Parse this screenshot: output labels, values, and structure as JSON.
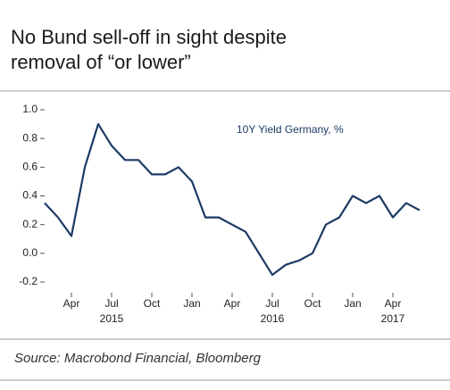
{
  "chart_data": {
    "type": "line",
    "title": "No Bund sell-off in sight despite removal of “or lower”",
    "annotation": "10Y Yield Germany, %",
    "source": "Source: Macrobond Financial, Bloomberg",
    "x": [
      "2015-02",
      "2015-03",
      "2015-04",
      "2015-05",
      "2015-06",
      "2015-07",
      "2015-08",
      "2015-09",
      "2015-10",
      "2015-11",
      "2015-12",
      "2016-01",
      "2016-02",
      "2016-03",
      "2016-04",
      "2016-05",
      "2016-06",
      "2016-07",
      "2016-08",
      "2016-09",
      "2016-10",
      "2016-11",
      "2016-12",
      "2017-01",
      "2017-02",
      "2017-03",
      "2017-04",
      "2017-05",
      "2017-06"
    ],
    "series": [
      {
        "name": "10Y Yield Germany, %",
        "color": "#1c3a64",
        "values": [
          0.35,
          0.25,
          0.12,
          0.6,
          0.9,
          0.75,
          0.65,
          0.65,
          0.55,
          0.55,
          0.6,
          0.5,
          0.25,
          0.25,
          0.2,
          0.15,
          0.0,
          -0.15,
          -0.08,
          -0.05,
          0.0,
          0.2,
          0.25,
          0.4,
          0.35,
          0.4,
          0.25,
          0.35,
          0.3
        ]
      }
    ],
    "xlim": [
      "2015-02",
      "2017-07"
    ],
    "xticks": [
      {
        "value": "2015-04",
        "label": "Apr"
      },
      {
        "value": "2015-07",
        "label": "Jul"
      },
      {
        "value": "2015-10",
        "label": "Oct"
      },
      {
        "value": "2016-01",
        "label": "Jan"
      },
      {
        "value": "2016-04",
        "label": "Apr"
      },
      {
        "value": "2016-07",
        "label": "Jul"
      },
      {
        "value": "2016-10",
        "label": "Oct"
      },
      {
        "value": "2017-01",
        "label": "Jan"
      },
      {
        "value": "2017-04",
        "label": "Apr"
      }
    ],
    "year_labels": [
      {
        "value": "2015-07",
        "label": "2015"
      },
      {
        "value": "2016-07",
        "label": "2016"
      },
      {
        "value": "2017-04",
        "label": "2017"
      }
    ],
    "ylim": [
      -0.2,
      1.0
    ],
    "yticks": [
      -0.2,
      {
        "value": 0.0,
        "label": "0.0"
      },
      0.2,
      0.4,
      0.6,
      0.8,
      {
        "value": 1.0,
        "label": "1.0"
      }
    ]
  }
}
